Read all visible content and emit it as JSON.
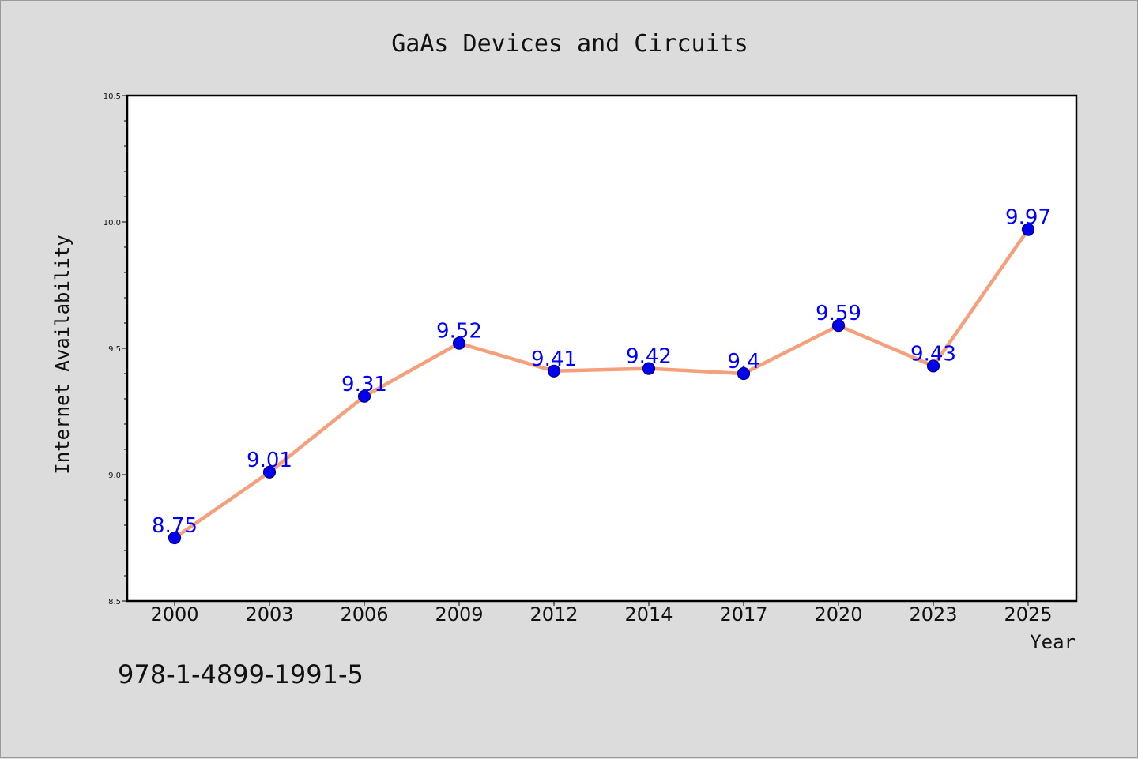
{
  "chart_data": {
    "type": "line",
    "title": "GaAs Devices and Circuits",
    "xlabel": "Year",
    "ylabel": "Internet Availability",
    "categories": [
      "2000",
      "2003",
      "2006",
      "2009",
      "2012",
      "2014",
      "2017",
      "2020",
      "2023",
      "2025"
    ],
    "series": [
      {
        "values": [
          8.75,
          9.01,
          9.31,
          9.52,
          9.41,
          9.42,
          9.4,
          9.59,
          9.43,
          9.97
        ]
      }
    ],
    "data_labels": [
      "8.75",
      "9.01",
      "9.31",
      "9.52",
      "9.41",
      "9.42",
      "9.4",
      "9.59",
      "9.43",
      "9.97"
    ],
    "ylim": [
      8.5,
      10.5
    ],
    "yticks": [
      "8.5",
      "9.0",
      "9.5",
      "10.0",
      "10.5"
    ],
    "grid": false,
    "legend": "none",
    "colors": {
      "line": "#f4a07c",
      "marker_fill": "#0000ee",
      "marker_edge": "#000080",
      "data_label": "#0000ff",
      "background": "#dcdcdc",
      "plot_background": "#ffffff"
    }
  },
  "footer": {
    "isbn": "978-1-4899-1991-5"
  }
}
